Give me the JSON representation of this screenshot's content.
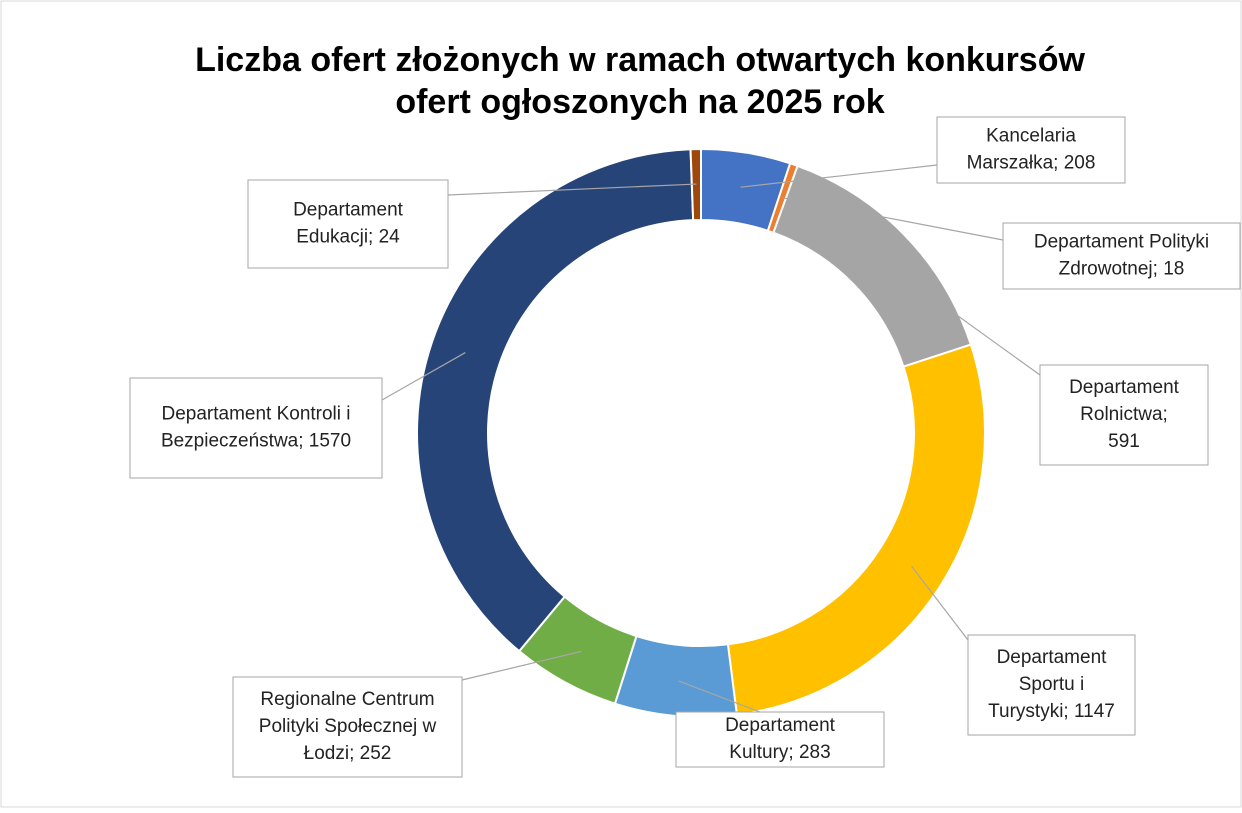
{
  "chart_data": {
    "type": "donut",
    "title": [
      "Liczba ofert złożonych w ramach otwartych konkursów",
      "ofert ogłoszonych na 2025 rok"
    ],
    "labels": [
      [
        "Kancelaria",
        "Marszałka; 208"
      ],
      [
        "Departament Polityki",
        "Zdrowotnej; 18"
      ],
      [
        "Departament",
        "Rolnictwa;",
        "591"
      ],
      [
        "Departament",
        "Sportu i",
        "Turystyki; 1147"
      ],
      [
        "Departament",
        "Kultury; 283"
      ],
      [
        "Regionalne Centrum",
        "Polityki Społecznej w",
        "Łodzi; 252"
      ],
      [
        "Departament Kontroli i",
        "Bezpieczeństwa; 1570"
      ],
      [
        "Departament",
        "Edukacji; 24"
      ]
    ],
    "values": [
      208,
      18,
      591,
      1147,
      283,
      252,
      1570,
      24
    ],
    "colors": [
      "#4472c4",
      "#ed7d31",
      "#a5a5a5",
      "#ffc000",
      "#5b9bd5",
      "#70ad47",
      "#264478",
      "#9e480e"
    ]
  }
}
